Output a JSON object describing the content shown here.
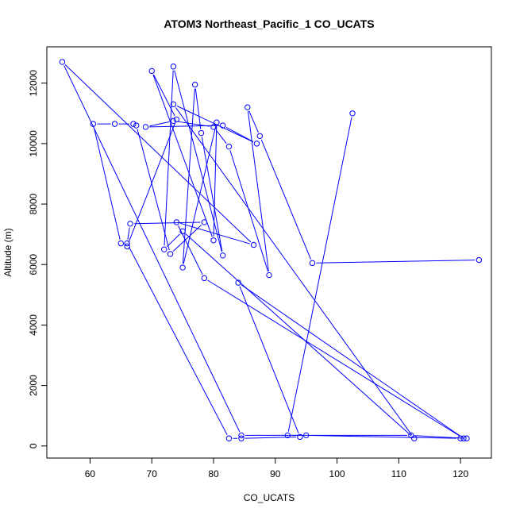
{
  "chart_data": {
    "type": "line",
    "title": "ATOM3 Northeast_Pacific_1 CO_UCATS",
    "xlabel": "CO_UCATS",
    "ylabel": "Altitude (m)",
    "xlim": [
      53,
      125
    ],
    "ylim": [
      -400,
      13200
    ],
    "xticks": [
      60,
      70,
      80,
      90,
      100,
      110,
      120
    ],
    "yticks": [
      0,
      2000,
      4000,
      6000,
      8000,
      10000,
      12000
    ],
    "grid": false,
    "color": "#0000ff",
    "series": [
      {
        "x": [
          123,
          96,
          87.5,
          85.5,
          89,
          82.5,
          80,
          73.5,
          69,
          81.5,
          87,
          73.5,
          112.5,
          75,
          72,
          73.5,
          81.5,
          78,
          77,
          75,
          80.5,
          80,
          70,
          74,
          66,
          65,
          60.5,
          64,
          67,
          67.5,
          73,
          78.5,
          66.5,
          66,
          82.5,
          84.5,
          94,
          84,
          120.5,
          78.5,
          74,
          86.5,
          55.5,
          84.5,
          95,
          120,
          121,
          112,
          92,
          102.5
        ],
        "y": [
          6150,
          6050,
          10250,
          11200,
          5650,
          9900,
          10550,
          10750,
          10550,
          10600,
          10000,
          11300,
          250,
          7100,
          6500,
          12550,
          6300,
          10350,
          11950,
          5900,
          10700,
          6800,
          12400,
          10800,
          6600,
          6700,
          10650,
          10650,
          10650,
          10600,
          6350,
          7400,
          7350,
          6700,
          250,
          250,
          300,
          5400,
          250,
          5550,
          7400,
          6650,
          12700,
          350,
          350,
          250,
          250,
          350,
          350,
          11000
        ]
      }
    ]
  }
}
